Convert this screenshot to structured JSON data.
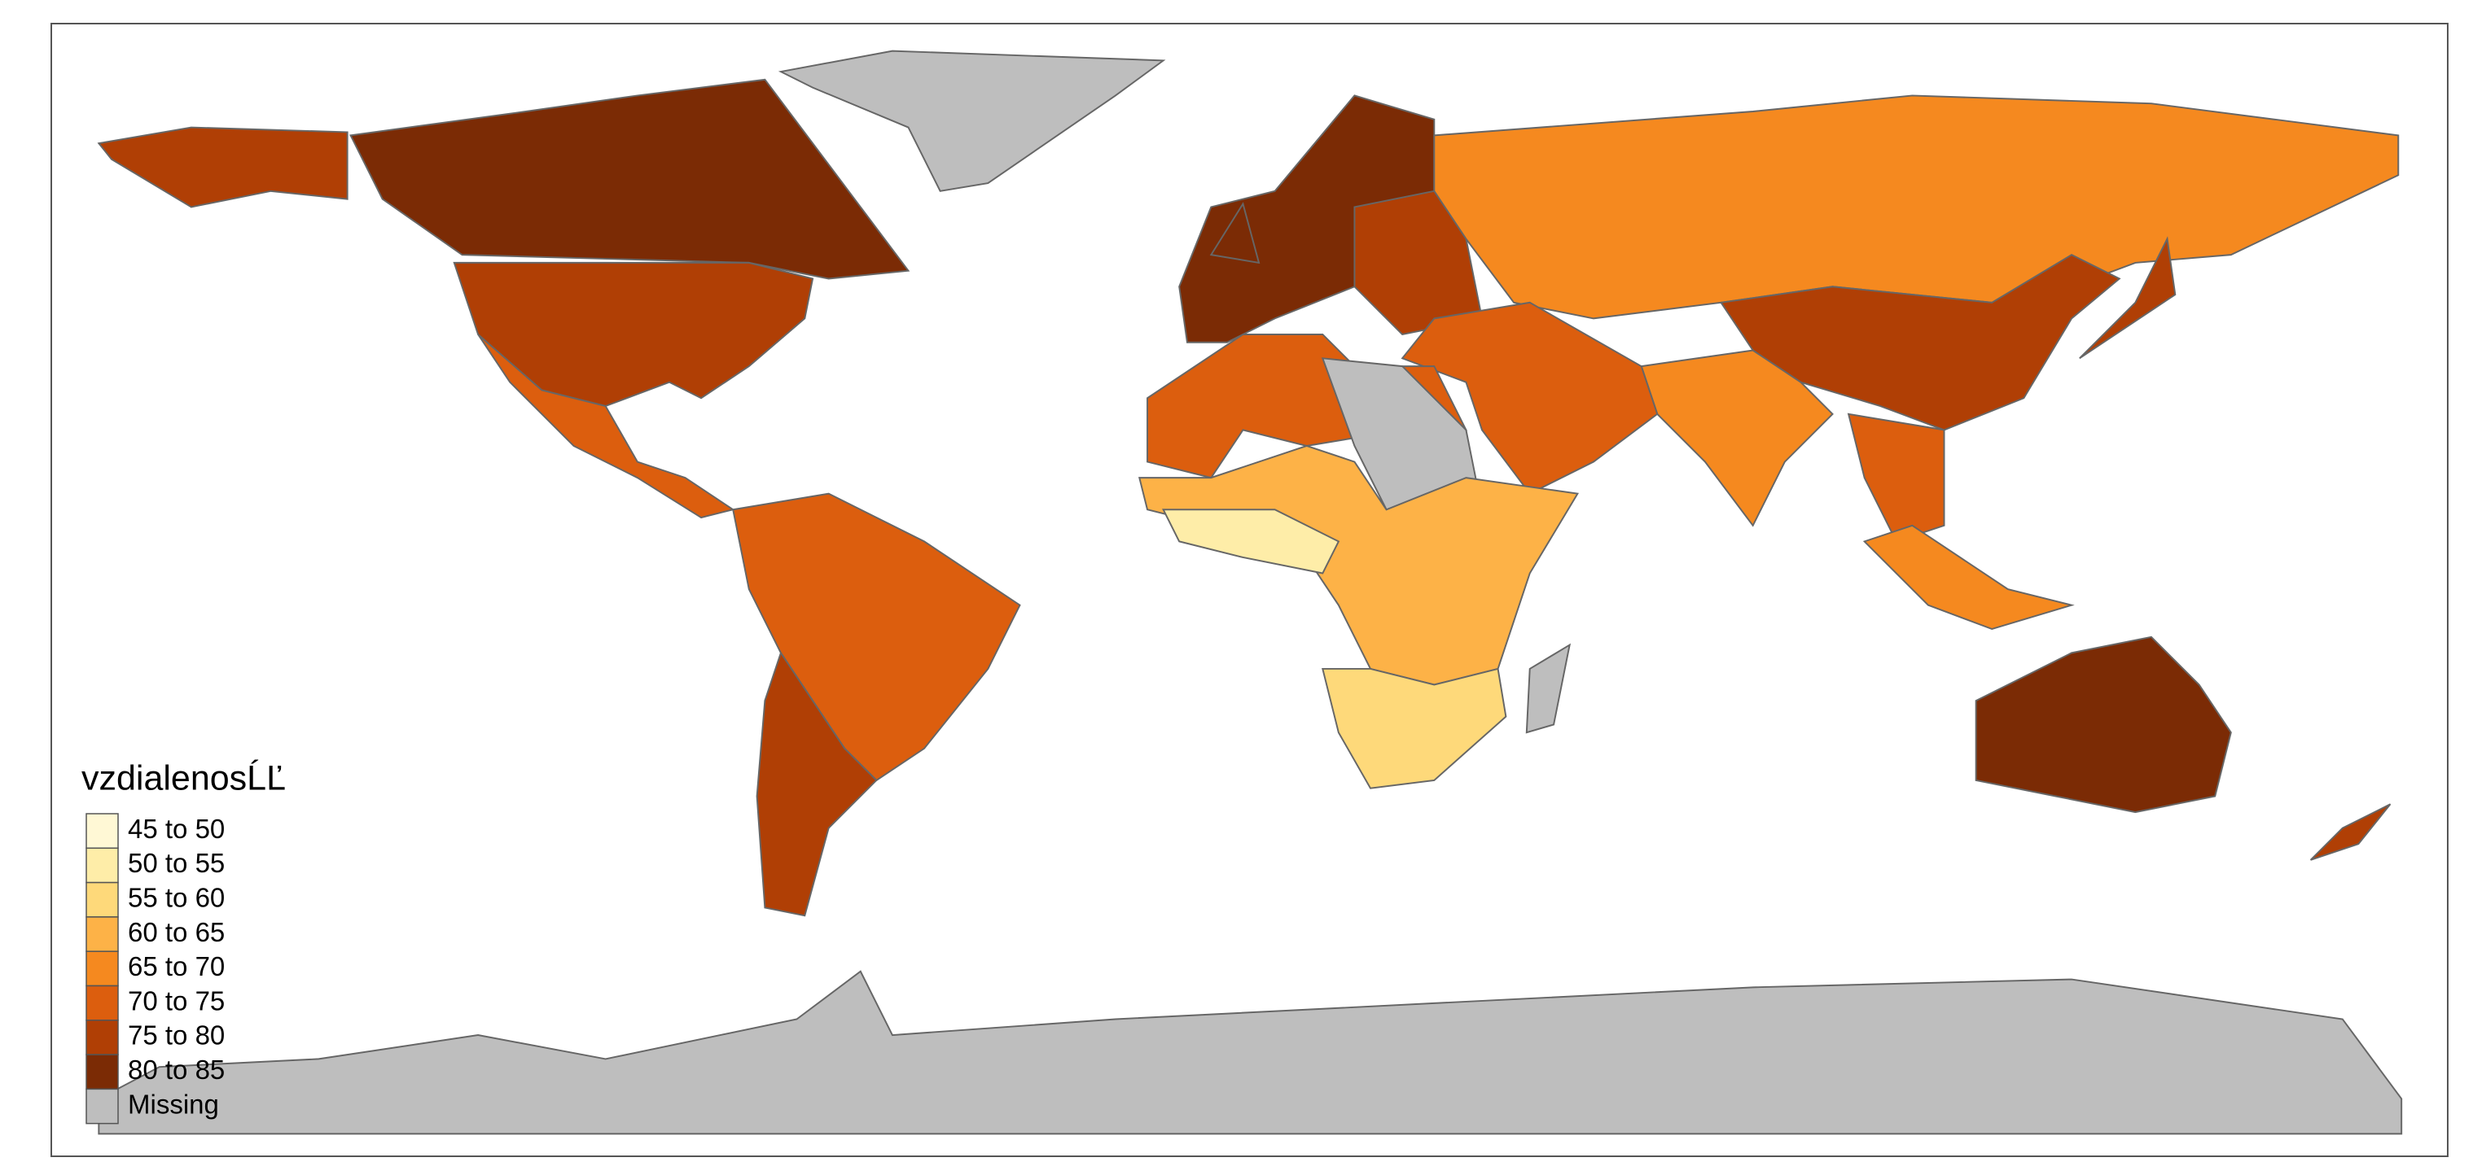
{
  "legend": {
    "title": "vzdialenosĹĽ",
    "items": [
      {
        "label": "45 to 50",
        "color": "#fff8d5"
      },
      {
        "label": "50 to 55",
        "color": "#feeda8"
      },
      {
        "label": "55 to 60",
        "color": "#fed97a"
      },
      {
        "label": "60 to 65",
        "color": "#fdb247"
      },
      {
        "label": "65 to 70",
        "color": "#f5891f"
      },
      {
        "label": "70 to 75",
        "color": "#dc5e0e"
      },
      {
        "label": "75 to 80",
        "color": "#b03f05"
      },
      {
        "label": "80 to 85",
        "color": "#7b2b05"
      },
      {
        "label": "Missing",
        "color": "#bebebe"
      }
    ]
  }
}
